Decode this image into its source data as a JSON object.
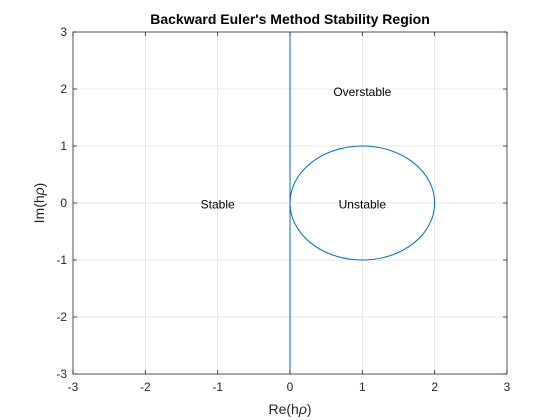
{
  "chart_data": {
    "type": "line",
    "title": "Backward Euler's Method Stability Region",
    "xlabel_main": "Re(h",
    "xlabel_symbol": "ρ",
    "xlabel_close": ")",
    "ylabel_main": "Im(h",
    "ylabel_symbol": "ρ",
    "ylabel_close": ")",
    "xlim": [
      -3,
      3
    ],
    "ylim": [
      -3,
      3
    ],
    "xticks": [
      -3,
      -2,
      -1,
      0,
      1,
      2,
      3
    ],
    "yticks": [
      -3,
      -2,
      -1,
      0,
      1,
      2,
      3
    ],
    "grid": true,
    "series": [
      {
        "kind": "vertical-line",
        "x": 0,
        "color": "#0072BD"
      },
      {
        "kind": "circle",
        "center": [
          1,
          0
        ],
        "radius": 1,
        "color": "#0072BD"
      }
    ],
    "annotations": [
      {
        "text": "Overstable",
        "x": 1.0,
        "y": 1.95
      },
      {
        "text": "Stable",
        "x": -1.0,
        "y": -0.03
      },
      {
        "text": "Unstable",
        "x": 1.0,
        "y": -0.03
      }
    ]
  }
}
